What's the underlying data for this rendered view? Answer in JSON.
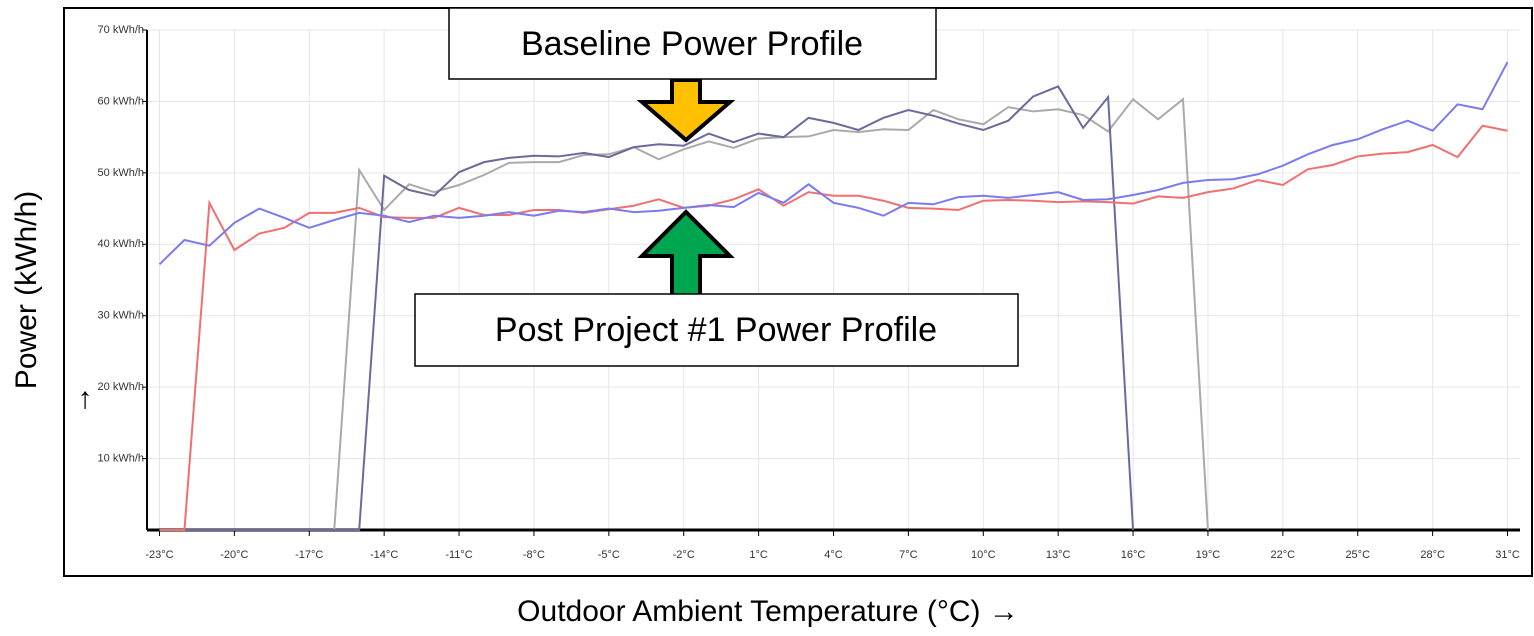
{
  "chart_data": {
    "type": "line",
    "annotations": [
      "Baseline Power Profile",
      "Post Project #1 Power Profile"
    ],
    "xlabel": "Outdoor Ambient Temperature (°C) →",
    "ylabel": "Power (kWh/h)",
    "ylabel_arrow": "→",
    "x": [
      -23,
      -22,
      -21,
      -20,
      -19,
      -18,
      -17,
      -16,
      -15,
      -14,
      -13,
      -12,
      -11,
      -10,
      -9,
      -8,
      -7,
      -6,
      -5,
      -4,
      -3,
      -2,
      -1,
      0,
      1,
      2,
      3,
      4,
      5,
      6,
      7,
      8,
      9,
      10,
      11,
      12,
      13,
      14,
      15,
      16,
      17,
      18,
      19,
      20,
      21,
      22,
      23,
      24,
      25,
      26,
      27,
      28,
      29,
      30,
      31
    ],
    "xlim": [
      -23.5,
      31.5
    ],
    "xticks": [
      {
        "value": -23,
        "label": "-23°C"
      },
      {
        "value": -20,
        "label": "-20°C"
      },
      {
        "value": -17,
        "label": "-17°C"
      },
      {
        "value": -14,
        "label": "-14°C"
      },
      {
        "value": -11,
        "label": "-11°C"
      },
      {
        "value": -8,
        "label": "-8°C"
      },
      {
        "value": -5,
        "label": "-5°C"
      },
      {
        "value": -2,
        "label": "-2°C"
      },
      {
        "value": 1,
        "label": "1°C"
      },
      {
        "value": 4,
        "label": "4°C"
      },
      {
        "value": 7,
        "label": "7°C"
      },
      {
        "value": 10,
        "label": "10°C"
      },
      {
        "value": 13,
        "label": "13°C"
      },
      {
        "value": 16,
        "label": "16°C"
      },
      {
        "value": 19,
        "label": "19°C"
      },
      {
        "value": 22,
        "label": "22°C"
      },
      {
        "value": 25,
        "label": "25°C"
      },
      {
        "value": 28,
        "label": "28°C"
      },
      {
        "value": 31,
        "label": "31°C"
      }
    ],
    "ylim": [
      0,
      70
    ],
    "yticks": [
      {
        "value": 10,
        "label": "10 kWh/h"
      },
      {
        "value": 20,
        "label": "20 kWh/h"
      },
      {
        "value": 30,
        "label": "30 kWh/h"
      },
      {
        "value": 40,
        "label": "40 kWh/h"
      },
      {
        "value": 50,
        "label": "50 kWh/h"
      },
      {
        "value": 60,
        "label": "60 kWh/h"
      },
      {
        "value": 70,
        "label": "70 kWh/h"
      }
    ],
    "grid": true,
    "series": [
      {
        "color": "#aaaaaa",
        "values": [
          0,
          0,
          0,
          0,
          0,
          0,
          0,
          0,
          50.4,
          44.8,
          48.4,
          47.3,
          48.3,
          49.7,
          51.4,
          51.5,
          51.5,
          52.5,
          52.6,
          53.6,
          51.9,
          53.3,
          54.4,
          53.5,
          54.8,
          55,
          55.1,
          56,
          55.7,
          56.1,
          56,
          58.8,
          57.5,
          56.8,
          59.2,
          58.6,
          58.9,
          58.1,
          55.8,
          60.3,
          57.5,
          60.3,
          0,
          null,
          null,
          null,
          null,
          null,
          null,
          null,
          null,
          null,
          null,
          null,
          null
        ]
      },
      {
        "color": "#6b6b9b",
        "values": [
          0,
          0,
          0,
          0,
          0,
          0,
          0,
          0,
          0,
          49.6,
          47.6,
          46.8,
          50.1,
          51.5,
          52.1,
          52.4,
          52.3,
          52.8,
          52.2,
          53.6,
          54,
          53.8,
          55.5,
          54.3,
          55.5,
          55,
          57.7,
          57,
          56,
          57.7,
          58.8,
          58,
          56.9,
          56,
          57.3,
          60.7,
          62.1,
          56.3,
          60.6,
          0,
          null,
          null,
          null,
          null,
          null,
          null,
          null,
          null,
          null,
          null,
          null,
          null,
          null,
          null,
          null
        ]
      },
      {
        "color": "#f07070",
        "values": [
          0,
          0,
          45.8,
          39.2,
          41.5,
          42.3,
          44.4,
          44.4,
          45.1,
          43.8,
          43.7,
          43.7,
          45.1,
          44.1,
          44.1,
          44.8,
          44.8,
          44.4,
          44.9,
          45.4,
          46.3,
          45.1,
          45.4,
          46.3,
          47.7,
          45.4,
          47.3,
          46.8,
          46.8,
          46.1,
          45.1,
          45,
          44.8,
          46.1,
          46.2,
          46.1,
          45.9,
          46,
          45.9,
          45.7,
          46.7,
          46.5,
          47.3,
          47.8,
          49,
          48.3,
          50.5,
          51.1,
          52.3,
          52.7,
          52.9,
          53.9,
          52.2,
          56.6,
          55.9
        ]
      },
      {
        "color": "#7b7bf0",
        "values": [
          37.2,
          40.6,
          39.8,
          43,
          45,
          43.7,
          42.3,
          43.4,
          44.4,
          44,
          43.1,
          44,
          43.7,
          44,
          44.5,
          44,
          44.7,
          44.5,
          45,
          44.5,
          44.7,
          45.1,
          45.5,
          45.2,
          47.2,
          45.8,
          48.4,
          45.8,
          45.1,
          44,
          45.8,
          45.6,
          46.6,
          46.8,
          46.5,
          46.9,
          47.3,
          46.2,
          46.3,
          46.9,
          47.6,
          48.6,
          49,
          49.1,
          49.8,
          51,
          52.6,
          53.9,
          54.7,
          56.1,
          57.3,
          55.9,
          59.6,
          58.9,
          65.5
        ]
      }
    ]
  }
}
